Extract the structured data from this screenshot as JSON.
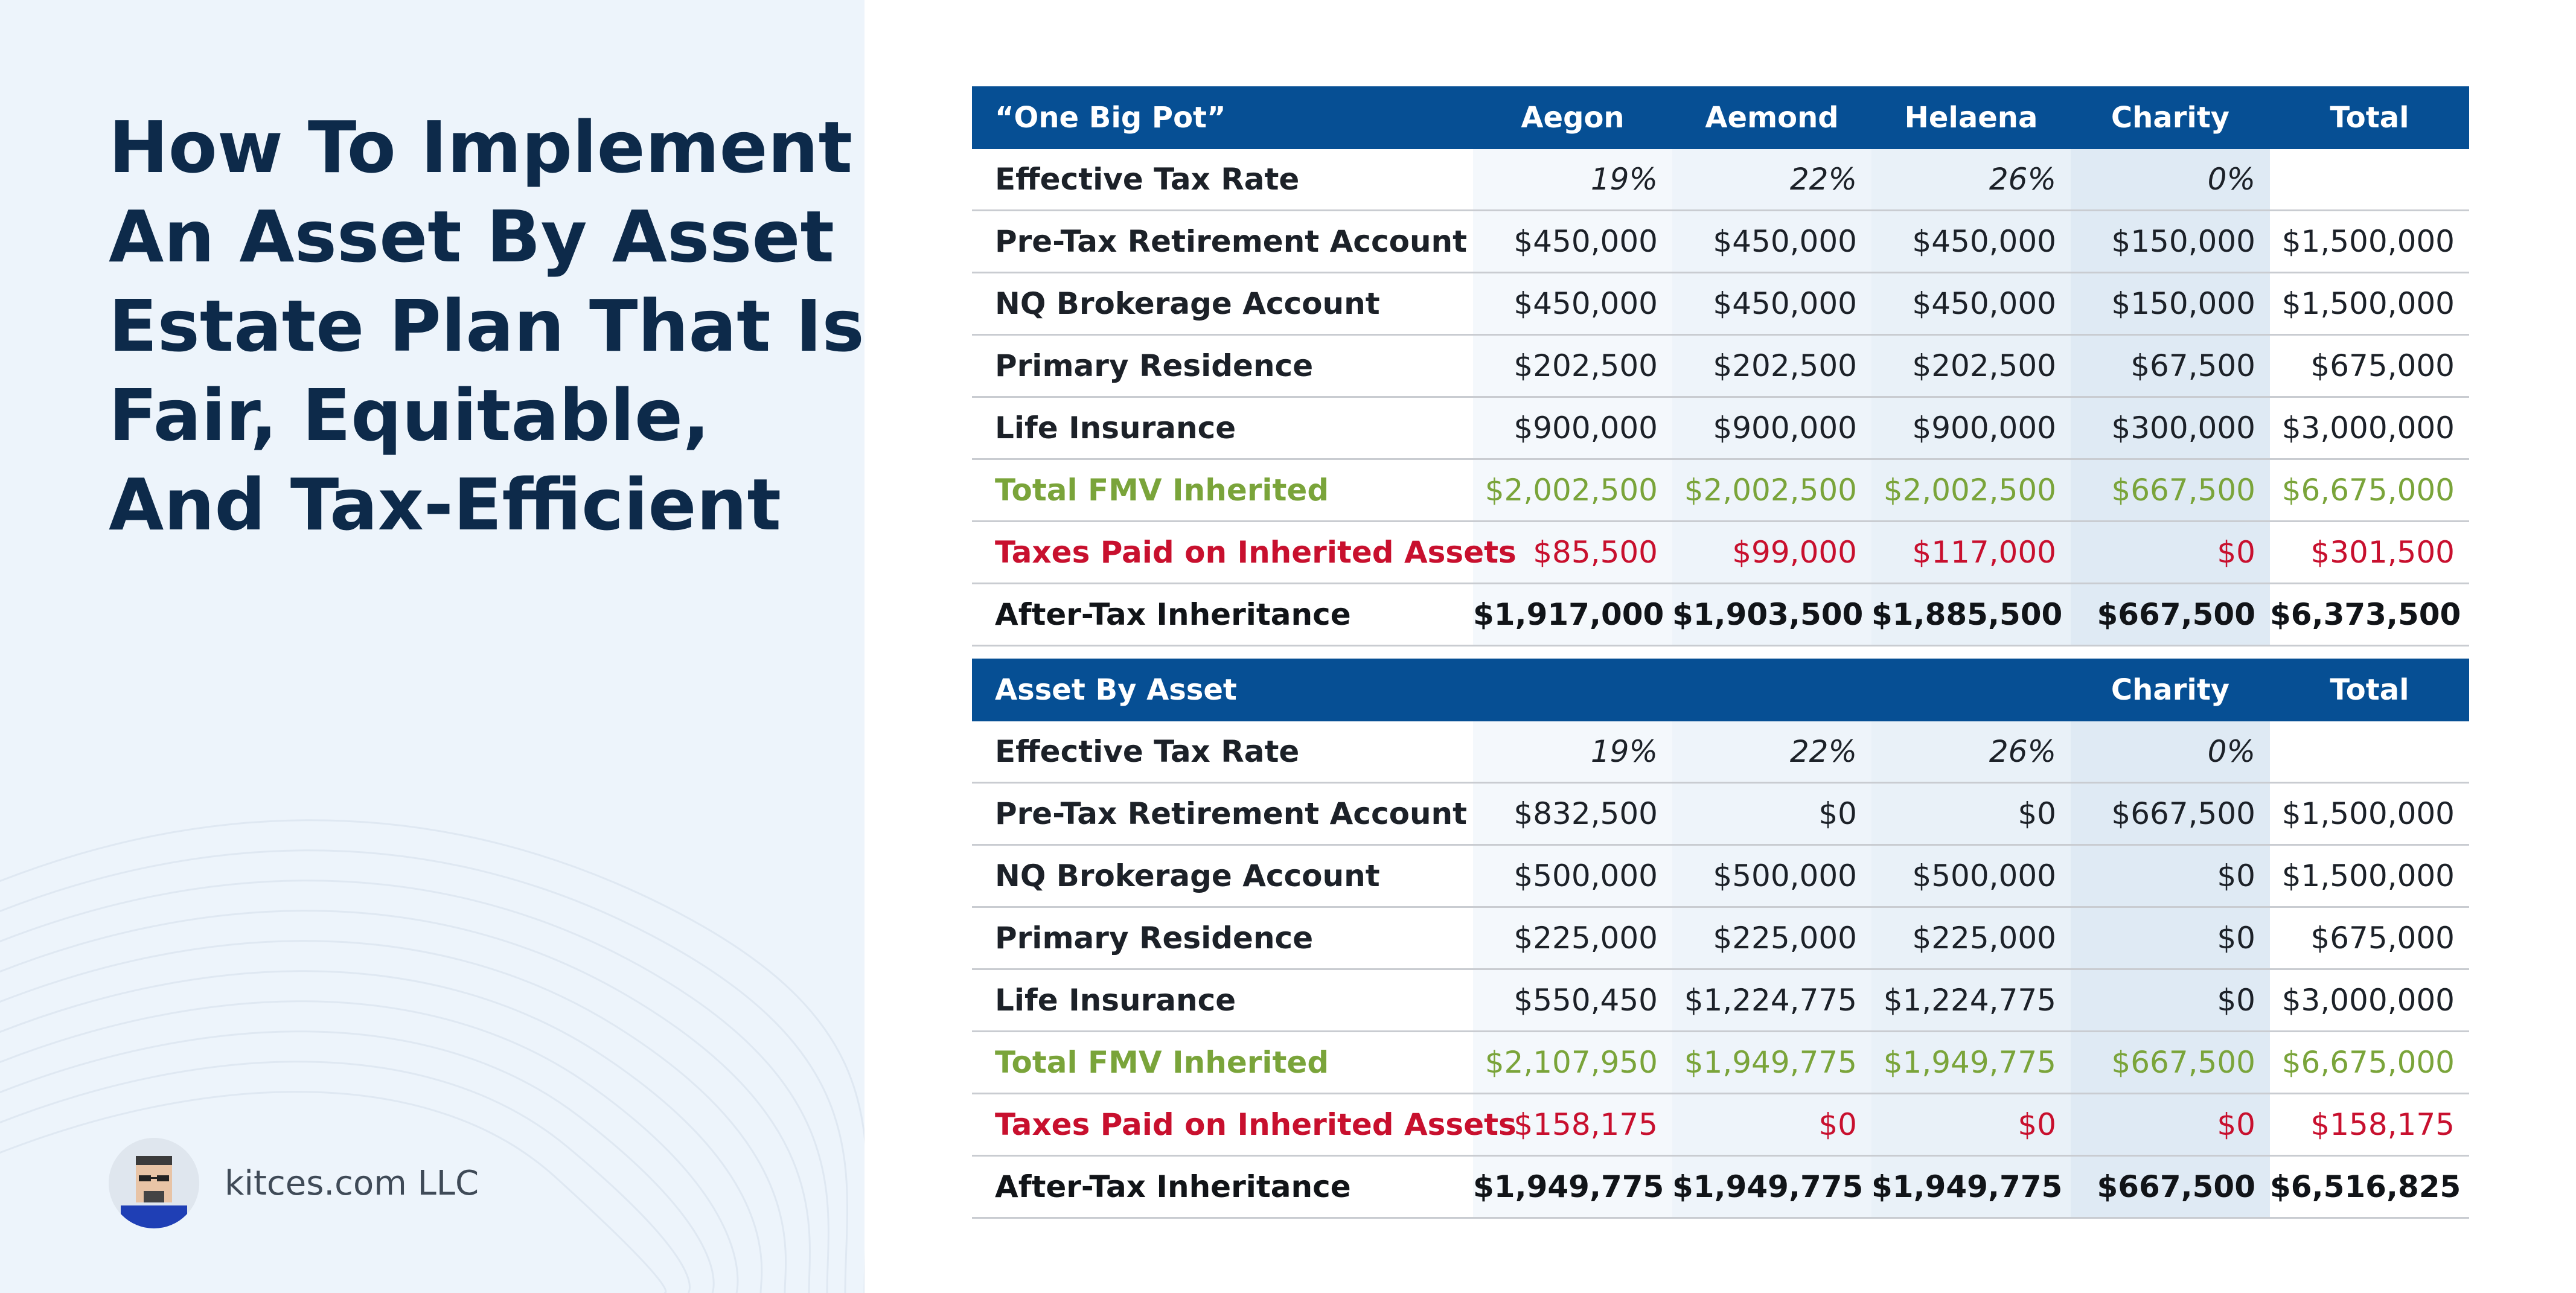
{
  "title_lines": [
    "How To Implement",
    "An Asset By Asset",
    "Estate Plan That Is",
    "Fair, Equitable,",
    "And Tax-Efficient"
  ],
  "brand": {
    "name": "kitces.com LLC",
    "avatar_icon": "cartoon-avatar-icon"
  },
  "colors": {
    "header_bg": "#064f94",
    "title": "#0d2a4a",
    "fmv_green": "#7aa43a",
    "tax_red": "#c8102e"
  },
  "top_table": {
    "headers": [
      "“One Big Pot”",
      "Aegon",
      "Aemond",
      "Helaena",
      "Charity",
      "Total"
    ],
    "rows": [
      {
        "label": "Effective Tax Rate",
        "values": [
          "19%",
          "22%",
          "26%",
          "0%",
          ""
        ]
      },
      {
        "label": "Pre-Tax Retirement Account",
        "values": [
          "$450,000",
          "$450,000",
          "$450,000",
          "$150,000",
          "$1,500,000"
        ]
      },
      {
        "label": "NQ Brokerage Account",
        "values": [
          "$450,000",
          "$450,000",
          "$450,000",
          "$150,000",
          "$1,500,000"
        ]
      },
      {
        "label": "Primary Residence",
        "values": [
          "$202,500",
          "$202,500",
          "$202,500",
          "$67,500",
          "$675,000"
        ]
      },
      {
        "label": "Life Insurance",
        "values": [
          "$900,000",
          "$900,000",
          "$900,000",
          "$300,000",
          "$3,000,000"
        ]
      },
      {
        "label": "Total FMV Inherited",
        "values": [
          "$2,002,500",
          "$2,002,500",
          "$2,002,500",
          "$667,500",
          "$6,675,000"
        ]
      },
      {
        "label": "Taxes Paid on Inherited Assets",
        "values": [
          "$85,500",
          "$99,000",
          "$117,000",
          "$0",
          "$301,500"
        ]
      },
      {
        "label": "After-Tax Inheritance",
        "values": [
          "$1,917,000",
          "$1,903,500",
          "$1,885,500",
          "$667,500",
          "$6,373,500"
        ]
      }
    ]
  },
  "bottom_table": {
    "headers": [
      "Asset By Asset",
      "",
      "",
      "",
      "Charity",
      "Total"
    ],
    "rows": [
      {
        "label": "Effective Tax Rate",
        "values": [
          "19%",
          "22%",
          "26%",
          "0%",
          ""
        ]
      },
      {
        "label": "Pre-Tax Retirement Account",
        "values": [
          "$832,500",
          "$0",
          "$0",
          "$667,500",
          "$1,500,000"
        ]
      },
      {
        "label": "NQ Brokerage Account",
        "values": [
          "$500,000",
          "$500,000",
          "$500,000",
          "$0",
          "$1,500,000"
        ]
      },
      {
        "label": "Primary Residence",
        "values": [
          "$225,000",
          "$225,000",
          "$225,000",
          "$0",
          "$675,000"
        ]
      },
      {
        "label": "Life Insurance",
        "values": [
          "$550,450",
          "$1,224,775",
          "$1,224,775",
          "$0",
          "$3,000,000"
        ]
      },
      {
        "label": "Total FMV Inherited",
        "values": [
          "$2,107,950",
          "$1,949,775",
          "$1,949,775",
          "$667,500",
          "$6,675,000"
        ]
      },
      {
        "label": "Taxes Paid on Inherited Assets",
        "values": [
          "$158,175",
          "$0",
          "$0",
          "$0",
          "$158,175"
        ]
      },
      {
        "label": "After-Tax Inheritance",
        "values": [
          "$1,949,775",
          "$1,949,775",
          "$1,949,775",
          "$667,500",
          "$6,516,825"
        ]
      }
    ]
  }
}
